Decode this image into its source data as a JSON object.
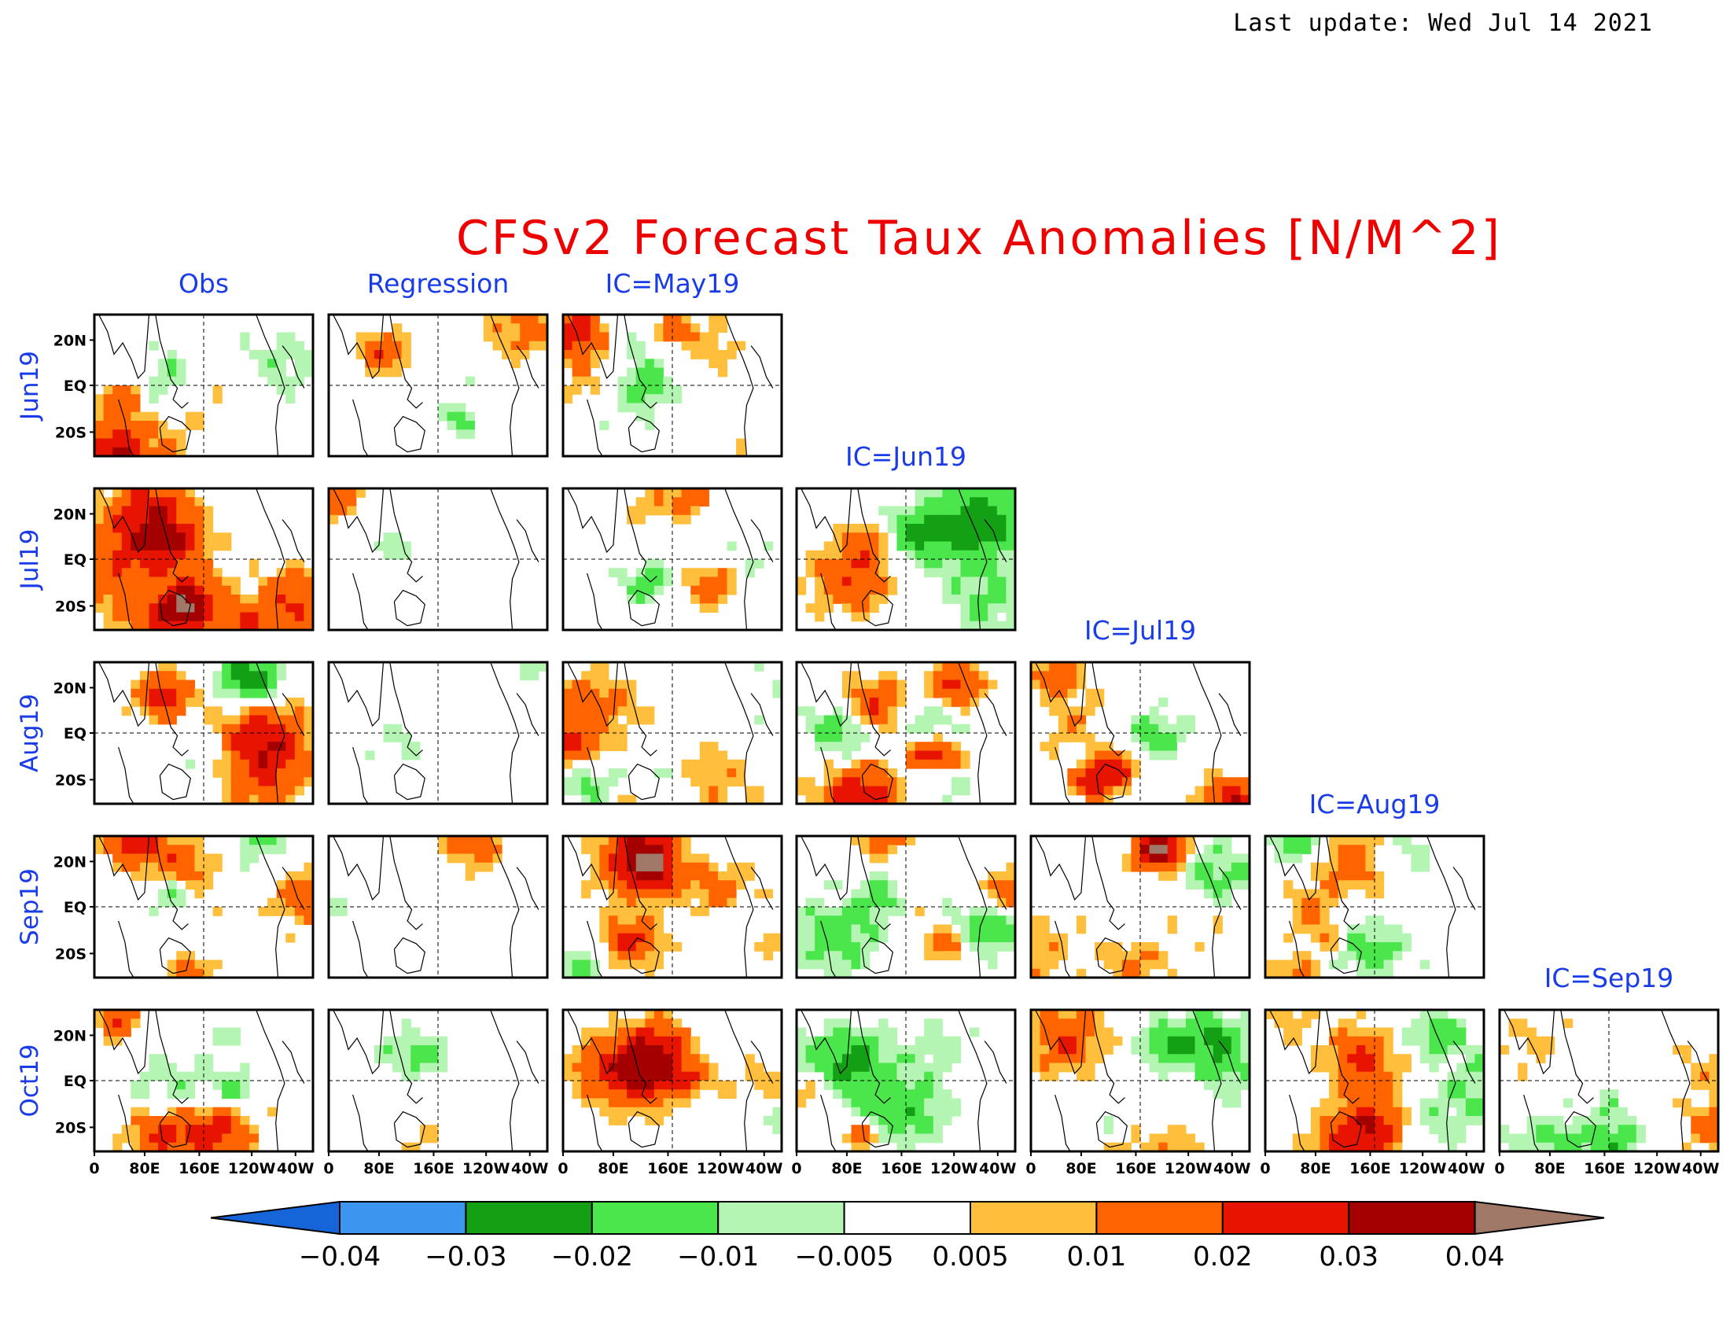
{
  "last_update": "Last update: Wed Jul 14 2021",
  "title": "CFSv2 Forecast Taux Anomalies [N/M^2]",
  "colors": {
    "title": "#ee0000",
    "labels": "#1a3ce8",
    "levels": [
      "#1565d8",
      "#3c96f0",
      "#14a014",
      "#4be64b",
      "#b4f5b4",
      "#ffffff",
      "#ffbe3c",
      "#ff6400",
      "#e61400",
      "#a50000",
      "#a07868"
    ]
  },
  "icons": [
    "colorbar-arrow-left-icon",
    "colorbar-arrow-right-icon"
  ],
  "chart_data": {
    "type": "heatmap",
    "title": "CFSv2 Forecast Taux Anomalies [N/M^2]",
    "variable": "Taux anomaly",
    "units": "N/M^2",
    "column_headers": [
      "Obs",
      "Regression",
      "IC=May19",
      "IC=Jun19",
      "IC=Jul19",
      "IC=Aug19",
      "IC=Sep19"
    ],
    "row_labels": [
      "Jun19",
      "Jul19",
      "Aug19",
      "Sep19",
      "Oct19"
    ],
    "panels_per_row": [
      3,
      4,
      5,
      6,
      7
    ],
    "x_ticks": [
      "0",
      "80E",
      "160E",
      "120W",
      "40W"
    ],
    "y_ticks": [
      "20N",
      "EQ",
      "20S"
    ],
    "colorbar": {
      "levels": [
        "-0.04",
        "-0.03",
        "-0.02",
        "-0.01",
        "-0.005",
        "0.005",
        "0.01",
        "0.02",
        "0.03",
        "0.04"
      ],
      "extend": "both"
    }
  }
}
